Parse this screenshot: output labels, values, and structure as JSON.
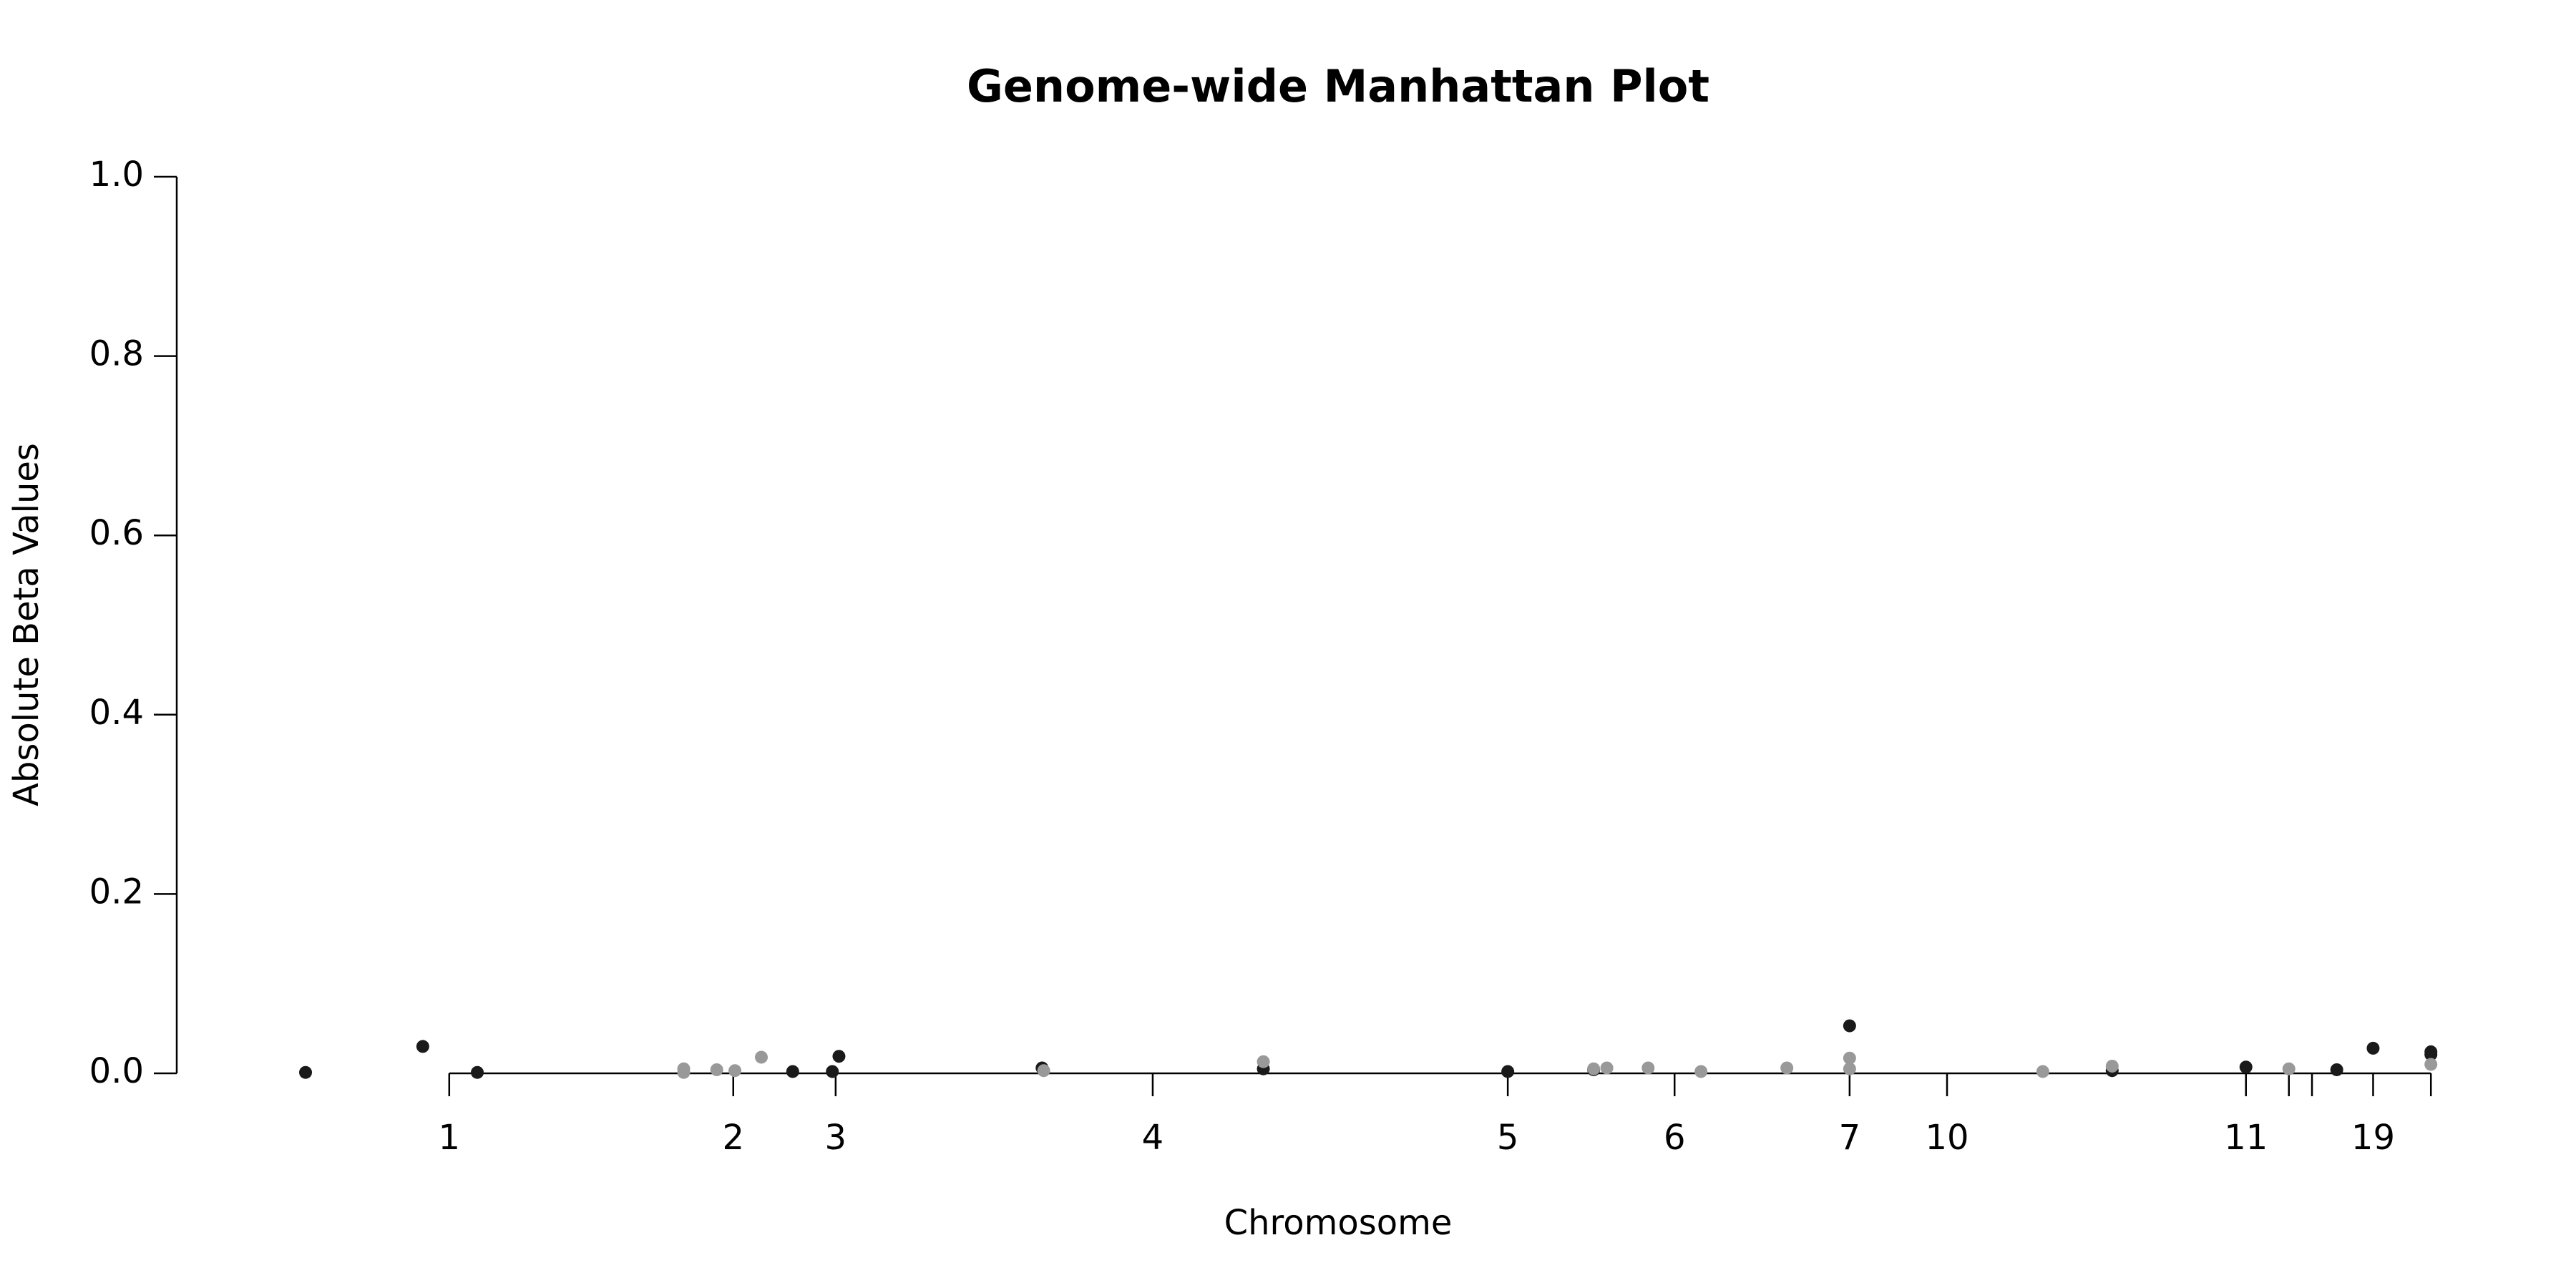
{
  "chart_data": {
    "type": "scatter",
    "title": "Genome-wide Manhattan Plot",
    "x_label": "Chromosome",
    "y_label": "Absolute Beta Values",
    "xlim": [
      0,
      1400
    ],
    "ylim": [
      0,
      1
    ],
    "xticks": [
      {
        "value": 165,
        "label": "1"
      },
      {
        "value": 337,
        "label": "2"
      },
      {
        "value": 399,
        "label": "3"
      },
      {
        "value": 591,
        "label": "4"
      },
      {
        "value": 806,
        "label": "5"
      },
      {
        "value": 907,
        "label": "6"
      },
      {
        "value": 1013,
        "label": "7"
      },
      {
        "value": 1072,
        "label": "10"
      },
      {
        "value": 1253,
        "label": "11"
      },
      {
        "value": 1279,
        "label": null
      },
      {
        "value": 1293,
        "label": null
      },
      {
        "value": 1330,
        "label": "19"
      },
      {
        "value": 1365,
        "label": null
      }
    ],
    "yticks": [
      {
        "value": 0,
        "label": "0.0"
      },
      0.2,
      0.4,
      0.6,
      0.8,
      {
        "value": 1,
        "label": "1.0"
      }
    ],
    "series": [
      {
        "color": "#1a1a1a",
        "x": [
          78,
          149,
          182,
          373,
          397,
          401,
          524,
          658,
          806,
          858,
          1013,
          1172,
          1253,
          1308,
          1330,
          1365,
          1365
        ],
        "values": [
          0.001,
          0.03,
          0.001,
          0.002,
          0.002,
          0.019,
          0.006,
          0.005,
          0.002,
          0.004,
          0.053,
          0.003,
          0.007,
          0.004,
          0.028,
          0.024,
          0.021
        ]
      },
      {
        "color": "#999999",
        "x": [
          307,
          307,
          327,
          338,
          354,
          525,
          658,
          858,
          866,
          891,
          923,
          975,
          1013,
          1013,
          1130,
          1172,
          1279,
          1365
        ],
        "values": [
          0.005,
          0.001,
          0.004,
          0.003,
          0.018,
          0.003,
          0.013,
          0.005,
          0.006,
          0.006,
          0.002,
          0.006,
          0.017,
          0.005,
          0.002,
          0.008,
          0.005,
          0.01
        ]
      }
    ]
  }
}
